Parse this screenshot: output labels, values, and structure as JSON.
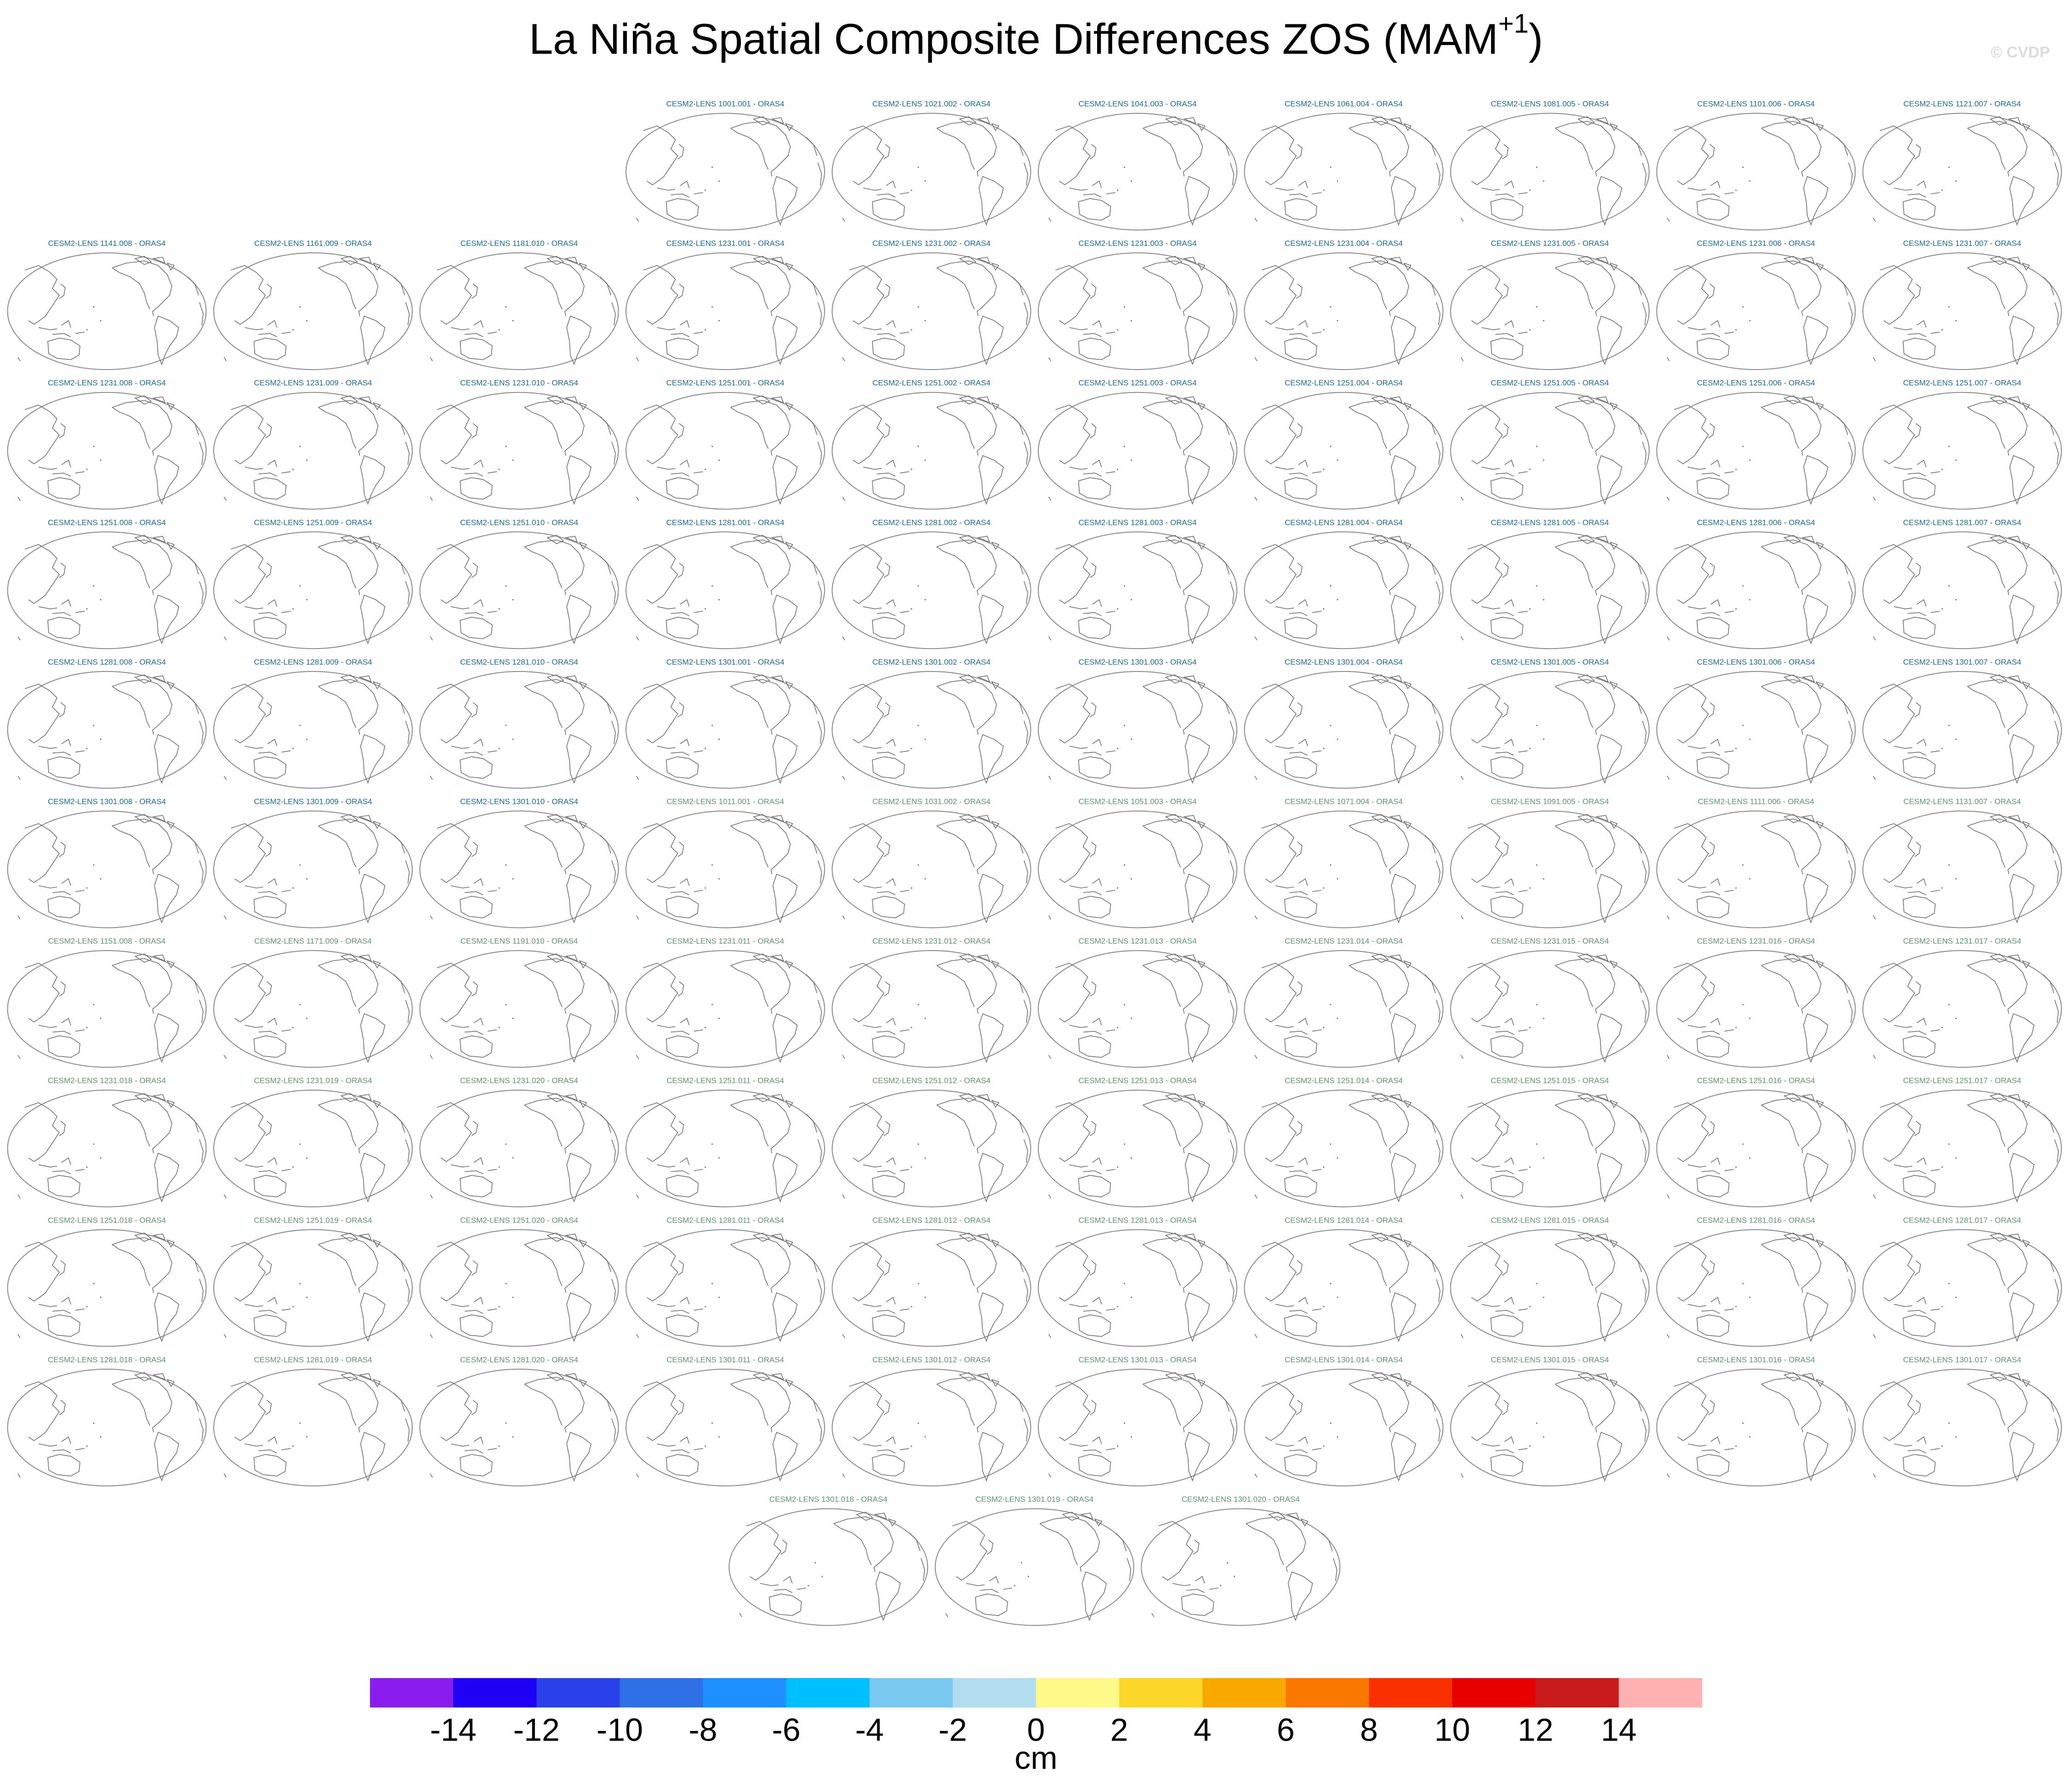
{
  "chart_data": {
    "type": "map_panels",
    "title": "La Niña Spatial Composite Differences ZOS (MAM",
    "title_superscript": "+1",
    "title_end": ")",
    "watermark": "© CVDP",
    "panels": [
      {
        "title": "CESM2-LENS 1001.001 - ORAS4",
        "color": "#1f6a94"
      },
      {
        "title": "CESM2-LENS 1021.002 - ORAS4",
        "color": "#1f6a94"
      },
      {
        "title": "CESM2-LENS 1041.003 - ORAS4",
        "color": "#1f6a94"
      },
      {
        "title": "CESM2-LENS 1061.004 - ORAS4",
        "color": "#1f6a94"
      },
      {
        "title": "CESM2-LENS 1081.005 - ORAS4",
        "color": "#1f6a94"
      },
      {
        "title": "CESM2-LENS 1101.006 - ORAS4",
        "color": "#1f6a94"
      },
      {
        "title": "CESM2-LENS 1121.007 - ORAS4",
        "color": "#1f6a94"
      },
      {
        "title": "CESM2-LENS 1141.008 - ORAS4",
        "color": "#1f6a94"
      },
      {
        "title": "CESM2-LENS 1161.009 - ORAS4",
        "color": "#1f6a94"
      },
      {
        "title": "CESM2-LENS 1181.010 - ORAS4",
        "color": "#1f6a94"
      },
      {
        "title": "CESM2-LENS 1231.001 - ORAS4",
        "color": "#1f6a94"
      },
      {
        "title": "CESM2-LENS 1231.002 - ORAS4",
        "color": "#1f6a94"
      },
      {
        "title": "CESM2-LENS 1231.003 - ORAS4",
        "color": "#1f6a94"
      },
      {
        "title": "CESM2-LENS 1231.004 - ORAS4",
        "color": "#1f6a94"
      },
      {
        "title": "CESM2-LENS 1231.005 - ORAS4",
        "color": "#1f6a94"
      },
      {
        "title": "CESM2-LENS 1231.006 - ORAS4",
        "color": "#1f6a94"
      },
      {
        "title": "CESM2-LENS 1231.007 - ORAS4",
        "color": "#1f6a94"
      },
      {
        "title": "CESM2-LENS 1231.008 - ORAS4",
        "color": "#1f6a94"
      },
      {
        "title": "CESM2-LENS 1231.009 - ORAS4",
        "color": "#1f6a94"
      },
      {
        "title": "CESM2-LENS 1231.010 - ORAS4",
        "color": "#1f6a94"
      },
      {
        "title": "CESM2-LENS 1251.001 - ORAS4",
        "color": "#1f6a94"
      },
      {
        "title": "CESM2-LENS 1251.002 - ORAS4",
        "color": "#1f6a94"
      },
      {
        "title": "CESM2-LENS 1251.003 - ORAS4",
        "color": "#1f6a94"
      },
      {
        "title": "CESM2-LENS 1251.004 - ORAS4",
        "color": "#1f6a94"
      },
      {
        "title": "CESM2-LENS 1251.005 - ORAS4",
        "color": "#1f6a94"
      },
      {
        "title": "CESM2-LENS 1251.006 - ORAS4",
        "color": "#1f6a94"
      },
      {
        "title": "CESM2-LENS 1251.007 - ORAS4",
        "color": "#1f6a94"
      },
      {
        "title": "CESM2-LENS 1251.008 - ORAS4",
        "color": "#1f6a94"
      },
      {
        "title": "CESM2-LENS 1251.009 - ORAS4",
        "color": "#1f6a94"
      },
      {
        "title": "CESM2-LENS 1251.010 - ORAS4",
        "color": "#1f6a94"
      },
      {
        "title": "CESM2-LENS 1281.001 - ORAS4",
        "color": "#1f6a94"
      },
      {
        "title": "CESM2-LENS 1281.002 - ORAS4",
        "color": "#1f6a94"
      },
      {
        "title": "CESM2-LENS 1281.003 - ORAS4",
        "color": "#1f6a94"
      },
      {
        "title": "CESM2-LENS 1281.004 - ORAS4",
        "color": "#1f6a94"
      },
      {
        "title": "CESM2-LENS 1281.005 - ORAS4",
        "color": "#1f6a94"
      },
      {
        "title": "CESM2-LENS 1281.006 - ORAS4",
        "color": "#1f6a94"
      },
      {
        "title": "CESM2-LENS 1281.007 - ORAS4",
        "color": "#1f6a94"
      },
      {
        "title": "CESM2-LENS 1281.008 - ORAS4",
        "color": "#1f6a94"
      },
      {
        "title": "CESM2-LENS 1281.009 - ORAS4",
        "color": "#1f6a94"
      },
      {
        "title": "CESM2-LENS 1281.010 - ORAS4",
        "color": "#1f6a94"
      },
      {
        "title": "CESM2-LENS 1301.001 - ORAS4",
        "color": "#1f6a94"
      },
      {
        "title": "CESM2-LENS 1301.002 - ORAS4",
        "color": "#1f6a94"
      },
      {
        "title": "CESM2-LENS 1301.003 - ORAS4",
        "color": "#1f6a94"
      },
      {
        "title": "CESM2-LENS 1301.004 - ORAS4",
        "color": "#1f6a94"
      },
      {
        "title": "CESM2-LENS 1301.005 - ORAS4",
        "color": "#1f6a94"
      },
      {
        "title": "CESM2-LENS 1301.006 - ORAS4",
        "color": "#1f6a94"
      },
      {
        "title": "CESM2-LENS 1301.007 - ORAS4",
        "color": "#1f6a94"
      },
      {
        "title": "CESM2-LENS 1301.008 - ORAS4",
        "color": "#1f6a94"
      },
      {
        "title": "CESM2-LENS 1301.009 - ORAS4",
        "color": "#1f6a94"
      },
      {
        "title": "CESM2-LENS 1301.010 - ORAS4",
        "color": "#1f6a94"
      },
      {
        "title": "CESM2-LENS 1011.001 - ORAS4",
        "color": "#5f9470"
      },
      {
        "title": "CESM2-LENS 1031.002 - ORAS4",
        "color": "#5f9470"
      },
      {
        "title": "CESM2-LENS 1051.003 - ORAS4",
        "color": "#5f9470"
      },
      {
        "title": "CESM2-LENS 1071.004 - ORAS4",
        "color": "#5f9470"
      },
      {
        "title": "CESM2-LENS 1091.005 - ORAS4",
        "color": "#5f9470"
      },
      {
        "title": "CESM2-LENS 1111.006 - ORAS4",
        "color": "#5f9470"
      },
      {
        "title": "CESM2-LENS 1131.007 - ORAS4",
        "color": "#5f9470"
      },
      {
        "title": "CESM2-LENS 1151.008 - ORAS4",
        "color": "#5f9470"
      },
      {
        "title": "CESM2-LENS 1171.009 - ORAS4",
        "color": "#5f9470"
      },
      {
        "title": "CESM2-LENS 1191.010 - ORAS4",
        "color": "#5f9470"
      },
      {
        "title": "CESM2-LENS 1231.011 - ORAS4",
        "color": "#5f9470"
      },
      {
        "title": "CESM2-LENS 1231.012 - ORAS4",
        "color": "#5f9470"
      },
      {
        "title": "CESM2-LENS 1231.013 - ORAS4",
        "color": "#5f9470"
      },
      {
        "title": "CESM2-LENS 1231.014 - ORAS4",
        "color": "#5f9470"
      },
      {
        "title": "CESM2-LENS 1231.015 - ORAS4",
        "color": "#5f9470"
      },
      {
        "title": "CESM2-LENS 1231.016 - ORAS4",
        "color": "#5f9470"
      },
      {
        "title": "CESM2-LENS 1231.017 - ORAS4",
        "color": "#5f9470"
      },
      {
        "title": "CESM2-LENS 1231.018 - ORAS4",
        "color": "#5f9470"
      },
      {
        "title": "CESM2-LENS 1231.019 - ORAS4",
        "color": "#5f9470"
      },
      {
        "title": "CESM2-LENS 1231.020 - ORAS4",
        "color": "#5f9470"
      },
      {
        "title": "CESM2-LENS 1251.011 - ORAS4",
        "color": "#5f9470"
      },
      {
        "title": "CESM2-LENS 1251.012 - ORAS4",
        "color": "#5f9470"
      },
      {
        "title": "CESM2-LENS 1251.013 - ORAS4",
        "color": "#5f9470"
      },
      {
        "title": "CESM2-LENS 1251.014 - ORAS4",
        "color": "#5f9470"
      },
      {
        "title": "CESM2-LENS 1251.015 - ORAS4",
        "color": "#5f9470"
      },
      {
        "title": "CESM2-LENS 1251.016 - ORAS4",
        "color": "#5f9470"
      },
      {
        "title": "CESM2-LENS 1251.017 - ORAS4",
        "color": "#5f9470"
      },
      {
        "title": "CESM2-LENS 1251.018 - ORAS4",
        "color": "#5f9470"
      },
      {
        "title": "CESM2-LENS 1251.019 - ORAS4",
        "color": "#5f9470"
      },
      {
        "title": "CESM2-LENS 1251.020 - ORAS4",
        "color": "#5f9470"
      },
      {
        "title": "CESM2-LENS 1281.011 - ORAS4",
        "color": "#5f9470"
      },
      {
        "title": "CESM2-LENS 1281.012 - ORAS4",
        "color": "#5f9470"
      },
      {
        "title": "CESM2-LENS 1281.013 - ORAS4",
        "color": "#5f9470"
      },
      {
        "title": "CESM2-LENS 1281.014 - ORAS4",
        "color": "#5f9470"
      },
      {
        "title": "CESM2-LENS 1281.015 - ORAS4",
        "color": "#5f9470"
      },
      {
        "title": "CESM2-LENS 1281.016 - ORAS4",
        "color": "#5f9470"
      },
      {
        "title": "CESM2-LENS 1281.017 - ORAS4",
        "color": "#5f9470"
      },
      {
        "title": "CESM2-LENS 1281.018 - ORAS4",
        "color": "#5f9470"
      },
      {
        "title": "CESM2-LENS 1281.019 - ORAS4",
        "color": "#5f9470"
      },
      {
        "title": "CESM2-LENS 1281.020 - ORAS4",
        "color": "#5f9470"
      },
      {
        "title": "CESM2-LENS 1301.011 - ORAS4",
        "color": "#5f9470"
      },
      {
        "title": "CESM2-LENS 1301.012 - ORAS4",
        "color": "#5f9470"
      },
      {
        "title": "CESM2-LENS 1301.013 - ORAS4",
        "color": "#5f9470"
      },
      {
        "title": "CESM2-LENS 1301.014 - ORAS4",
        "color": "#5f9470"
      },
      {
        "title": "CESM2-LENS 1301.015 - ORAS4",
        "color": "#5f9470"
      },
      {
        "title": "CESM2-LENS 1301.016 - ORAS4",
        "color": "#5f9470"
      },
      {
        "title": "CESM2-LENS 1301.017 - ORAS4",
        "color": "#5f9470"
      },
      {
        "title": "CESM2-LENS 1301.018 - ORAS4",
        "color": "#5f9470"
      },
      {
        "title": "CESM2-LENS 1301.019 - ORAS4",
        "color": "#5f9470"
      },
      {
        "title": "CESM2-LENS 1301.020 - ORAS4",
        "color": "#5f9470"
      }
    ],
    "colorbar": {
      "colors": [
        "#8a1cf0",
        "#2000f5",
        "#2a40e8",
        "#2f70e6",
        "#1e90ff",
        "#00bfff",
        "#78c8f0",
        "#b2dcf0",
        "#fff98a",
        "#fcd628",
        "#f9a800",
        "#fa7800",
        "#fa3000",
        "#e60000",
        "#c81a1a",
        "#ffb0b0"
      ],
      "ticks": [
        -14,
        -12,
        -10,
        -8,
        -6,
        -4,
        -2,
        0,
        2,
        4,
        6,
        8,
        10,
        12,
        14
      ],
      "label": "cm"
    }
  }
}
